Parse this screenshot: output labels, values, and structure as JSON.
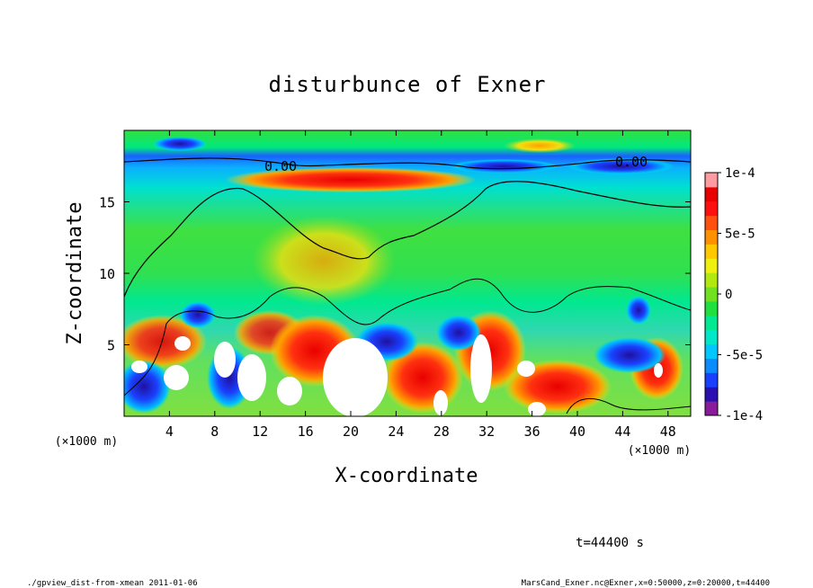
{
  "chart_data": {
    "type": "heatmap",
    "title": "disturbunce of Exner",
    "xlabel": "X-coordinate",
    "ylabel": "Z-coordinate",
    "x_unit": "(×1000 m)",
    "x_unit_right": "(×1000 m)",
    "xlim": [
      0,
      50
    ],
    "ylim": [
      0,
      20
    ],
    "x_ticks": [
      4,
      8,
      12,
      16,
      20,
      24,
      28,
      32,
      36,
      40,
      44,
      48
    ],
    "y_ticks": [
      5,
      10,
      15
    ],
    "colorbar": {
      "range": [
        -0.0001,
        0.0001
      ],
      "tick_labels": [
        "1e-4",
        "5e-5",
        "0",
        "-5e-5",
        "-1e-4"
      ],
      "colors": [
        "#8a1c9c",
        "#2a10b0",
        "#1a40ff",
        "#0a8cff",
        "#00c8ff",
        "#00e8c8",
        "#00e890",
        "#20e040",
        "#70e020",
        "#b0e810",
        "#f0f010",
        "#ffc800",
        "#ff9000",
        "#ff5010",
        "#ff1010",
        "#e80000",
        "#ff9aa0"
      ]
    },
    "contour_labels": [
      "0.00",
      "0.00"
    ],
    "time_label": "t=44400 s"
  },
  "footer": {
    "left": "./gpview_dist-from-xmean  2011-01-06",
    "right": "MarsCand_Exner.nc@Exner,x=0:50000,z=0:20000,t=44400"
  }
}
